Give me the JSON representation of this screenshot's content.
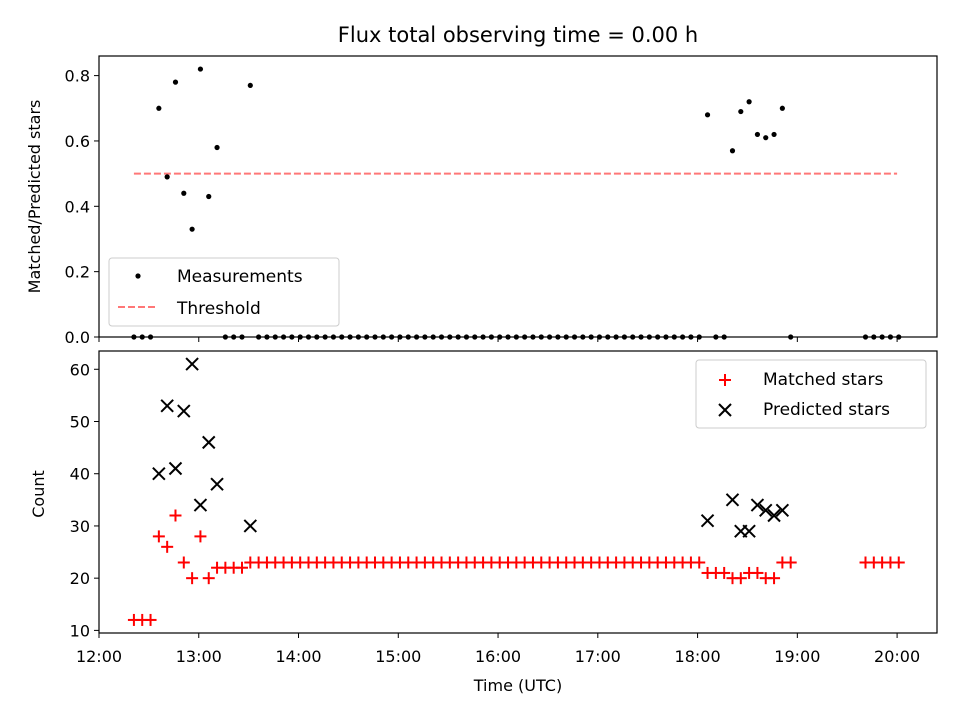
{
  "chart_data": [
    {
      "type": "scatter",
      "title": "Flux total observing time = 0.00 h",
      "xlabel": "",
      "ylabel": "Matched/Predicted stars",
      "xlim": [
        "12:00",
        "20:24"
      ],
      "ylim": [
        0,
        0.86
      ],
      "yticks": [
        "0.0",
        "0.2",
        "0.4",
        "0.6",
        "0.8"
      ],
      "legend": {
        "placement": "lower-left",
        "entries": [
          "Measurements",
          "Threshold"
        ]
      },
      "threshold": {
        "name": "Threshold",
        "y": 0.5,
        "x_range": [
          "12:21",
          "20:00"
        ],
        "color": "#ff7777",
        "style": "dashed"
      },
      "series": [
        {
          "name": "Measurements",
          "color": "#000000",
          "points": [
            [
              "12:21",
              0.0
            ],
            [
              "12:26",
              0.0
            ],
            [
              "12:31",
              0.0
            ],
            [
              "12:36",
              0.7
            ],
            [
              "12:41",
              0.49
            ],
            [
              "12:46",
              0.78
            ],
            [
              "12:51",
              0.44
            ],
            [
              "12:56",
              0.33
            ],
            [
              "13:01",
              0.82
            ],
            [
              "13:06",
              0.43
            ],
            [
              "13:11",
              0.58
            ],
            [
              "13:16",
              0.0
            ],
            [
              "13:21",
              0.0
            ],
            [
              "13:26",
              0.0
            ],
            [
              "13:31",
              0.77
            ],
            [
              "13:36",
              0.0
            ],
            [
              "13:41",
              0.0
            ],
            [
              "13:46",
              0.0
            ],
            [
              "13:51",
              0.0
            ],
            [
              "13:56",
              0.0
            ],
            [
              "14:01",
              0.0
            ],
            [
              "14:06",
              0.0
            ],
            [
              "14:11",
              0.0
            ],
            [
              "14:16",
              0.0
            ],
            [
              "14:21",
              0.0
            ],
            [
              "14:26",
              0.0
            ],
            [
              "14:31",
              0.0
            ],
            [
              "14:36",
              0.0
            ],
            [
              "14:41",
              0.0
            ],
            [
              "14:46",
              0.0
            ],
            [
              "14:51",
              0.0
            ],
            [
              "14:56",
              0.0
            ],
            [
              "15:01",
              0.0
            ],
            [
              "15:06",
              0.0
            ],
            [
              "15:11",
              0.0
            ],
            [
              "15:16",
              0.0
            ],
            [
              "15:21",
              0.0
            ],
            [
              "15:26",
              0.0
            ],
            [
              "15:31",
              0.0
            ],
            [
              "15:36",
              0.0
            ],
            [
              "15:41",
              0.0
            ],
            [
              "15:46",
              0.0
            ],
            [
              "15:51",
              0.0
            ],
            [
              "15:56",
              0.0
            ],
            [
              "16:01",
              0.0
            ],
            [
              "16:06",
              0.0
            ],
            [
              "16:11",
              0.0
            ],
            [
              "16:16",
              0.0
            ],
            [
              "16:21",
              0.0
            ],
            [
              "16:26",
              0.0
            ],
            [
              "16:31",
              0.0
            ],
            [
              "16:36",
              0.0
            ],
            [
              "16:41",
              0.0
            ],
            [
              "16:46",
              0.0
            ],
            [
              "16:51",
              0.0
            ],
            [
              "16:56",
              0.0
            ],
            [
              "17:01",
              0.0
            ],
            [
              "17:06",
              0.0
            ],
            [
              "17:11",
              0.0
            ],
            [
              "17:16",
              0.0
            ],
            [
              "17:21",
              0.0
            ],
            [
              "17:26",
              0.0
            ],
            [
              "17:31",
              0.0
            ],
            [
              "17:36",
              0.0
            ],
            [
              "17:41",
              0.0
            ],
            [
              "17:46",
              0.0
            ],
            [
              "17:51",
              0.0
            ],
            [
              "17:56",
              0.0
            ],
            [
              "18:01",
              0.0
            ],
            [
              "18:06",
              0.68
            ],
            [
              "18:11",
              0.0
            ],
            [
              "18:16",
              0.0
            ],
            [
              "18:21",
              0.57
            ],
            [
              "18:26",
              0.69
            ],
            [
              "18:31",
              0.72
            ],
            [
              "18:36",
              0.62
            ],
            [
              "18:41",
              0.61
            ],
            [
              "18:46",
              0.62
            ],
            [
              "18:51",
              0.7
            ],
            [
              "18:56",
              0.0
            ],
            [
              "19:41",
              0.0
            ],
            [
              "19:46",
              0.0
            ],
            [
              "19:51",
              0.0
            ],
            [
              "19:56",
              0.0
            ],
            [
              "20:01",
              0.0
            ]
          ]
        }
      ]
    },
    {
      "type": "scatter",
      "title": "",
      "xlabel": "Time (UTC)",
      "ylabel": "Count",
      "xlim": [
        "12:00",
        "20:24"
      ],
      "ylim": [
        9.5,
        63.5
      ],
      "yticks": [
        "10",
        "20",
        "30",
        "40",
        "50",
        "60"
      ],
      "xticks": [
        "12:00",
        "13:00",
        "14:00",
        "15:00",
        "16:00",
        "17:00",
        "18:00",
        "19:00",
        "20:00"
      ],
      "legend": {
        "placement": "upper-right",
        "entries": [
          "Matched stars",
          "Predicted stars"
        ]
      },
      "series": [
        {
          "name": "Matched stars",
          "marker": "+",
          "color": "#ff0000",
          "points": [
            [
              "12:21",
              12
            ],
            [
              "12:26",
              12
            ],
            [
              "12:31",
              12
            ],
            [
              "12:36",
              28
            ],
            [
              "12:41",
              26
            ],
            [
              "12:46",
              32
            ],
            [
              "12:51",
              23
            ],
            [
              "12:56",
              20
            ],
            [
              "13:01",
              28
            ],
            [
              "13:06",
              20
            ],
            [
              "13:11",
              22
            ],
            [
              "13:16",
              22
            ],
            [
              "13:21",
              22
            ],
            [
              "13:26",
              22
            ],
            [
              "13:31",
              23
            ],
            [
              "13:36",
              23
            ],
            [
              "13:41",
              23
            ],
            [
              "13:46",
              23
            ],
            [
              "13:51",
              23
            ],
            [
              "13:56",
              23
            ],
            [
              "14:01",
              23
            ],
            [
              "14:06",
              23
            ],
            [
              "14:11",
              23
            ],
            [
              "14:16",
              23
            ],
            [
              "14:21",
              23
            ],
            [
              "14:26",
              23
            ],
            [
              "14:31",
              23
            ],
            [
              "14:36",
              23
            ],
            [
              "14:41",
              23
            ],
            [
              "14:46",
              23
            ],
            [
              "14:51",
              23
            ],
            [
              "14:56",
              23
            ],
            [
              "15:01",
              23
            ],
            [
              "15:06",
              23
            ],
            [
              "15:11",
              23
            ],
            [
              "15:16",
              23
            ],
            [
              "15:21",
              23
            ],
            [
              "15:26",
              23
            ],
            [
              "15:31",
              23
            ],
            [
              "15:36",
              23
            ],
            [
              "15:41",
              23
            ],
            [
              "15:46",
              23
            ],
            [
              "15:51",
              23
            ],
            [
              "15:56",
              23
            ],
            [
              "16:01",
              23
            ],
            [
              "16:06",
              23
            ],
            [
              "16:11",
              23
            ],
            [
              "16:16",
              23
            ],
            [
              "16:21",
              23
            ],
            [
              "16:26",
              23
            ],
            [
              "16:31",
              23
            ],
            [
              "16:36",
              23
            ],
            [
              "16:41",
              23
            ],
            [
              "16:46",
              23
            ],
            [
              "16:51",
              23
            ],
            [
              "16:56",
              23
            ],
            [
              "17:01",
              23
            ],
            [
              "17:06",
              23
            ],
            [
              "17:11",
              23
            ],
            [
              "17:16",
              23
            ],
            [
              "17:21",
              23
            ],
            [
              "17:26",
              23
            ],
            [
              "17:31",
              23
            ],
            [
              "17:36",
              23
            ],
            [
              "17:41",
              23
            ],
            [
              "17:46",
              23
            ],
            [
              "17:51",
              23
            ],
            [
              "17:56",
              23
            ],
            [
              "18:01",
              23
            ],
            [
              "18:06",
              21
            ],
            [
              "18:11",
              21
            ],
            [
              "18:16",
              21
            ],
            [
              "18:21",
              20
            ],
            [
              "18:26",
              20
            ],
            [
              "18:31",
              21
            ],
            [
              "18:36",
              21
            ],
            [
              "18:41",
              20
            ],
            [
              "18:46",
              20
            ],
            [
              "18:51",
              23
            ],
            [
              "18:56",
              23
            ],
            [
              "19:41",
              23
            ],
            [
              "19:46",
              23
            ],
            [
              "19:51",
              23
            ],
            [
              "19:56",
              23
            ],
            [
              "20:01",
              23
            ]
          ]
        },
        {
          "name": "Predicted stars",
          "marker": "x",
          "color": "#000000",
          "points": [
            [
              "12:36",
              40
            ],
            [
              "12:41",
              53
            ],
            [
              "12:46",
              41
            ],
            [
              "12:51",
              52
            ],
            [
              "12:56",
              61
            ],
            [
              "13:01",
              34
            ],
            [
              "13:06",
              46
            ],
            [
              "13:11",
              38
            ],
            [
              "13:31",
              30
            ],
            [
              "18:06",
              31
            ],
            [
              "18:21",
              35
            ],
            [
              "18:26",
              29
            ],
            [
              "18:31",
              29
            ],
            [
              "18:36",
              34
            ],
            [
              "18:41",
              33
            ],
            [
              "18:46",
              32
            ],
            [
              "18:51",
              33
            ]
          ]
        }
      ]
    }
  ]
}
